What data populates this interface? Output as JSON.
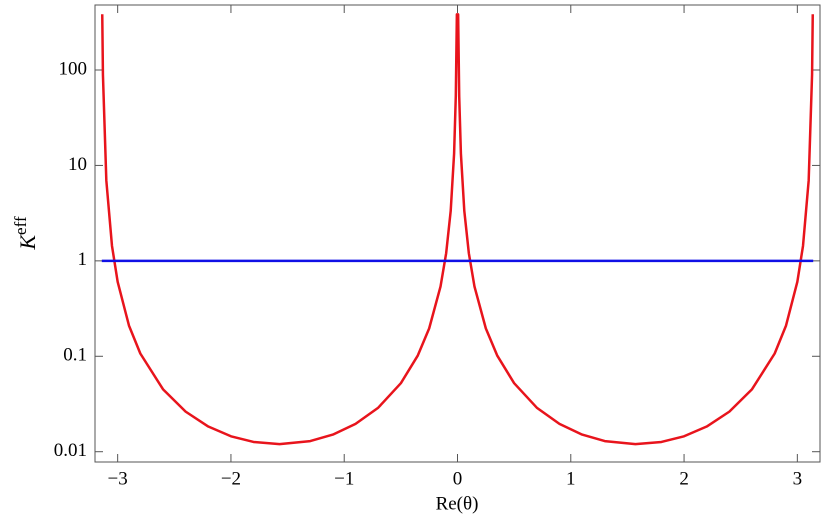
{
  "chart_data": {
    "type": "line",
    "xlabel": "Re(θ)",
    "ylabel_base": "K",
    "ylabel_sup": "eff",
    "xlim": [
      -3.2,
      3.2
    ],
    "ylim": [
      0.0078,
      480
    ],
    "ylog": true,
    "grid": false,
    "xticks": [
      {
        "value": -3,
        "label": "−3"
      },
      {
        "value": -2,
        "label": "−2"
      },
      {
        "value": -1,
        "label": "−1"
      },
      0,
      1,
      2,
      3
    ],
    "yticks": [
      0.01,
      0.1,
      1,
      10,
      100
    ],
    "series": [
      {
        "color": "#e8141c",
        "x": [
          -3.136,
          -3.13,
          -3.1,
          -3.05,
          -3.0,
          -2.9,
          -2.8,
          -2.6,
          -2.4,
          -2.2,
          -2.0,
          -1.8,
          -1.5708,
          -1.3,
          -1.1,
          -0.9,
          -0.7,
          -0.5,
          -0.35,
          -0.25,
          -0.15,
          -0.1,
          -0.06,
          -0.03,
          -0.015,
          -0.0056,
          0.0056,
          0.015,
          0.03,
          0.06,
          0.1,
          0.15,
          0.25,
          0.35,
          0.5,
          0.7,
          0.9,
          1.1,
          1.3,
          1.5708,
          1.8,
          2.0,
          2.2,
          2.4,
          2.6,
          2.8,
          2.9,
          3.0,
          3.05,
          3.1,
          3.13,
          3.136
        ],
        "values": [
          384,
          89.3,
          6.94,
          1.435,
          0.603,
          0.2096,
          0.1069,
          0.04516,
          0.0263,
          0.01836,
          0.01451,
          0.01265,
          0.012,
          0.01292,
          0.01511,
          0.01956,
          0.02891,
          0.05221,
          0.1021,
          0.1961,
          0.5374,
          1.204,
          3.337,
          13.33,
          53.33,
          382.7,
          382.7,
          53.33,
          13.33,
          3.337,
          1.204,
          0.5374,
          0.1961,
          0.1021,
          0.05221,
          0.02891,
          0.01956,
          0.01511,
          0.01292,
          0.012,
          0.01265,
          0.01451,
          0.01836,
          0.0263,
          0.04516,
          0.1069,
          0.2096,
          0.603,
          1.435,
          6.94,
          89.3,
          384
        ]
      },
      {
        "color": "#1010e6",
        "x": [
          -3.14,
          3.14
        ],
        "values": [
          1,
          1
        ]
      }
    ]
  }
}
